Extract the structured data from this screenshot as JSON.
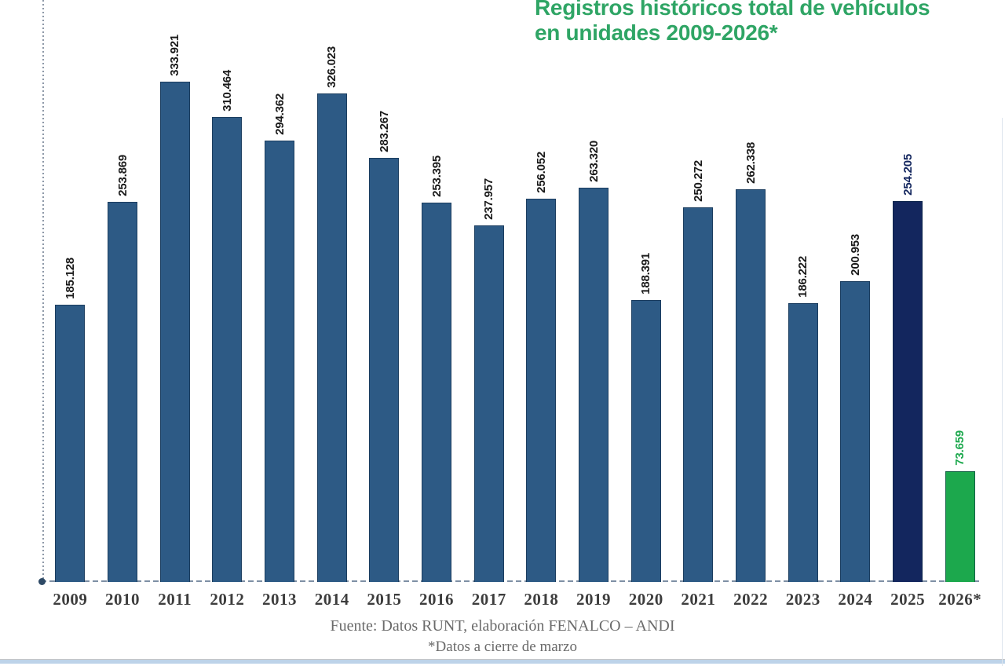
{
  "title": {
    "line1": "Registros históricos total de vehículos",
    "line2": "en unidades 2009-2026*"
  },
  "footer": {
    "source": "Fuente: Datos RUNT, elaboración FENALCO – ANDI",
    "note": "*Datos a cierre de marzo"
  },
  "colors": {
    "title_green": "#2FA565",
    "bar_default": "#2D5A85",
    "bar_2025": "#13265E",
    "bar_2026": "#1CA84D",
    "value_label_default": "#1A1A1A",
    "value_label_2025": "#13265E",
    "value_label_2026": "#1CA84D",
    "axis": "#7E90A5",
    "origin_dot": "#2E4A66",
    "year_label": "#3D3D3D",
    "footer_text": "#6B6B6B",
    "bottom_band": "#BDD3E9"
  },
  "chart_data": {
    "type": "bar",
    "title": "Registros históricos total de vehículos en unidades 2009-2026*",
    "xlabel": "",
    "ylabel": "",
    "ylim": [
      0,
      340000
    ],
    "grid": false,
    "legend_position": "none",
    "value_label_rotation": 90,
    "categories": [
      "2009",
      "2010",
      "2011",
      "2012",
      "2013",
      "2014",
      "2015",
      "2016",
      "2017",
      "2018",
      "2019",
      "2020",
      "2021",
      "2022",
      "2023",
      "2024",
      "2025",
      "2026*"
    ],
    "values": [
      185128,
      253869,
      333921,
      310464,
      294362,
      326023,
      283267,
      253395,
      237957,
      256052,
      263320,
      188391,
      250272,
      262338,
      186222,
      200953,
      254205,
      73659
    ],
    "value_labels": [
      "185.128",
      "253.869",
      "333.921",
      "310.464",
      "294.362",
      "326.023",
      "283.267",
      "253.395",
      "237.957",
      "256.052",
      "263.320",
      "188.391",
      "250.272",
      "262.338",
      "186.222",
      "200.953",
      "254.205",
      "73.659"
    ],
    "highlight_bars": {
      "2025": "navy",
      "2026*": "green"
    },
    "annotations": [
      "*Datos a cierre de marzo"
    ],
    "source": "Fuente: Datos RUNT, elaboración FENALCO – ANDI"
  }
}
